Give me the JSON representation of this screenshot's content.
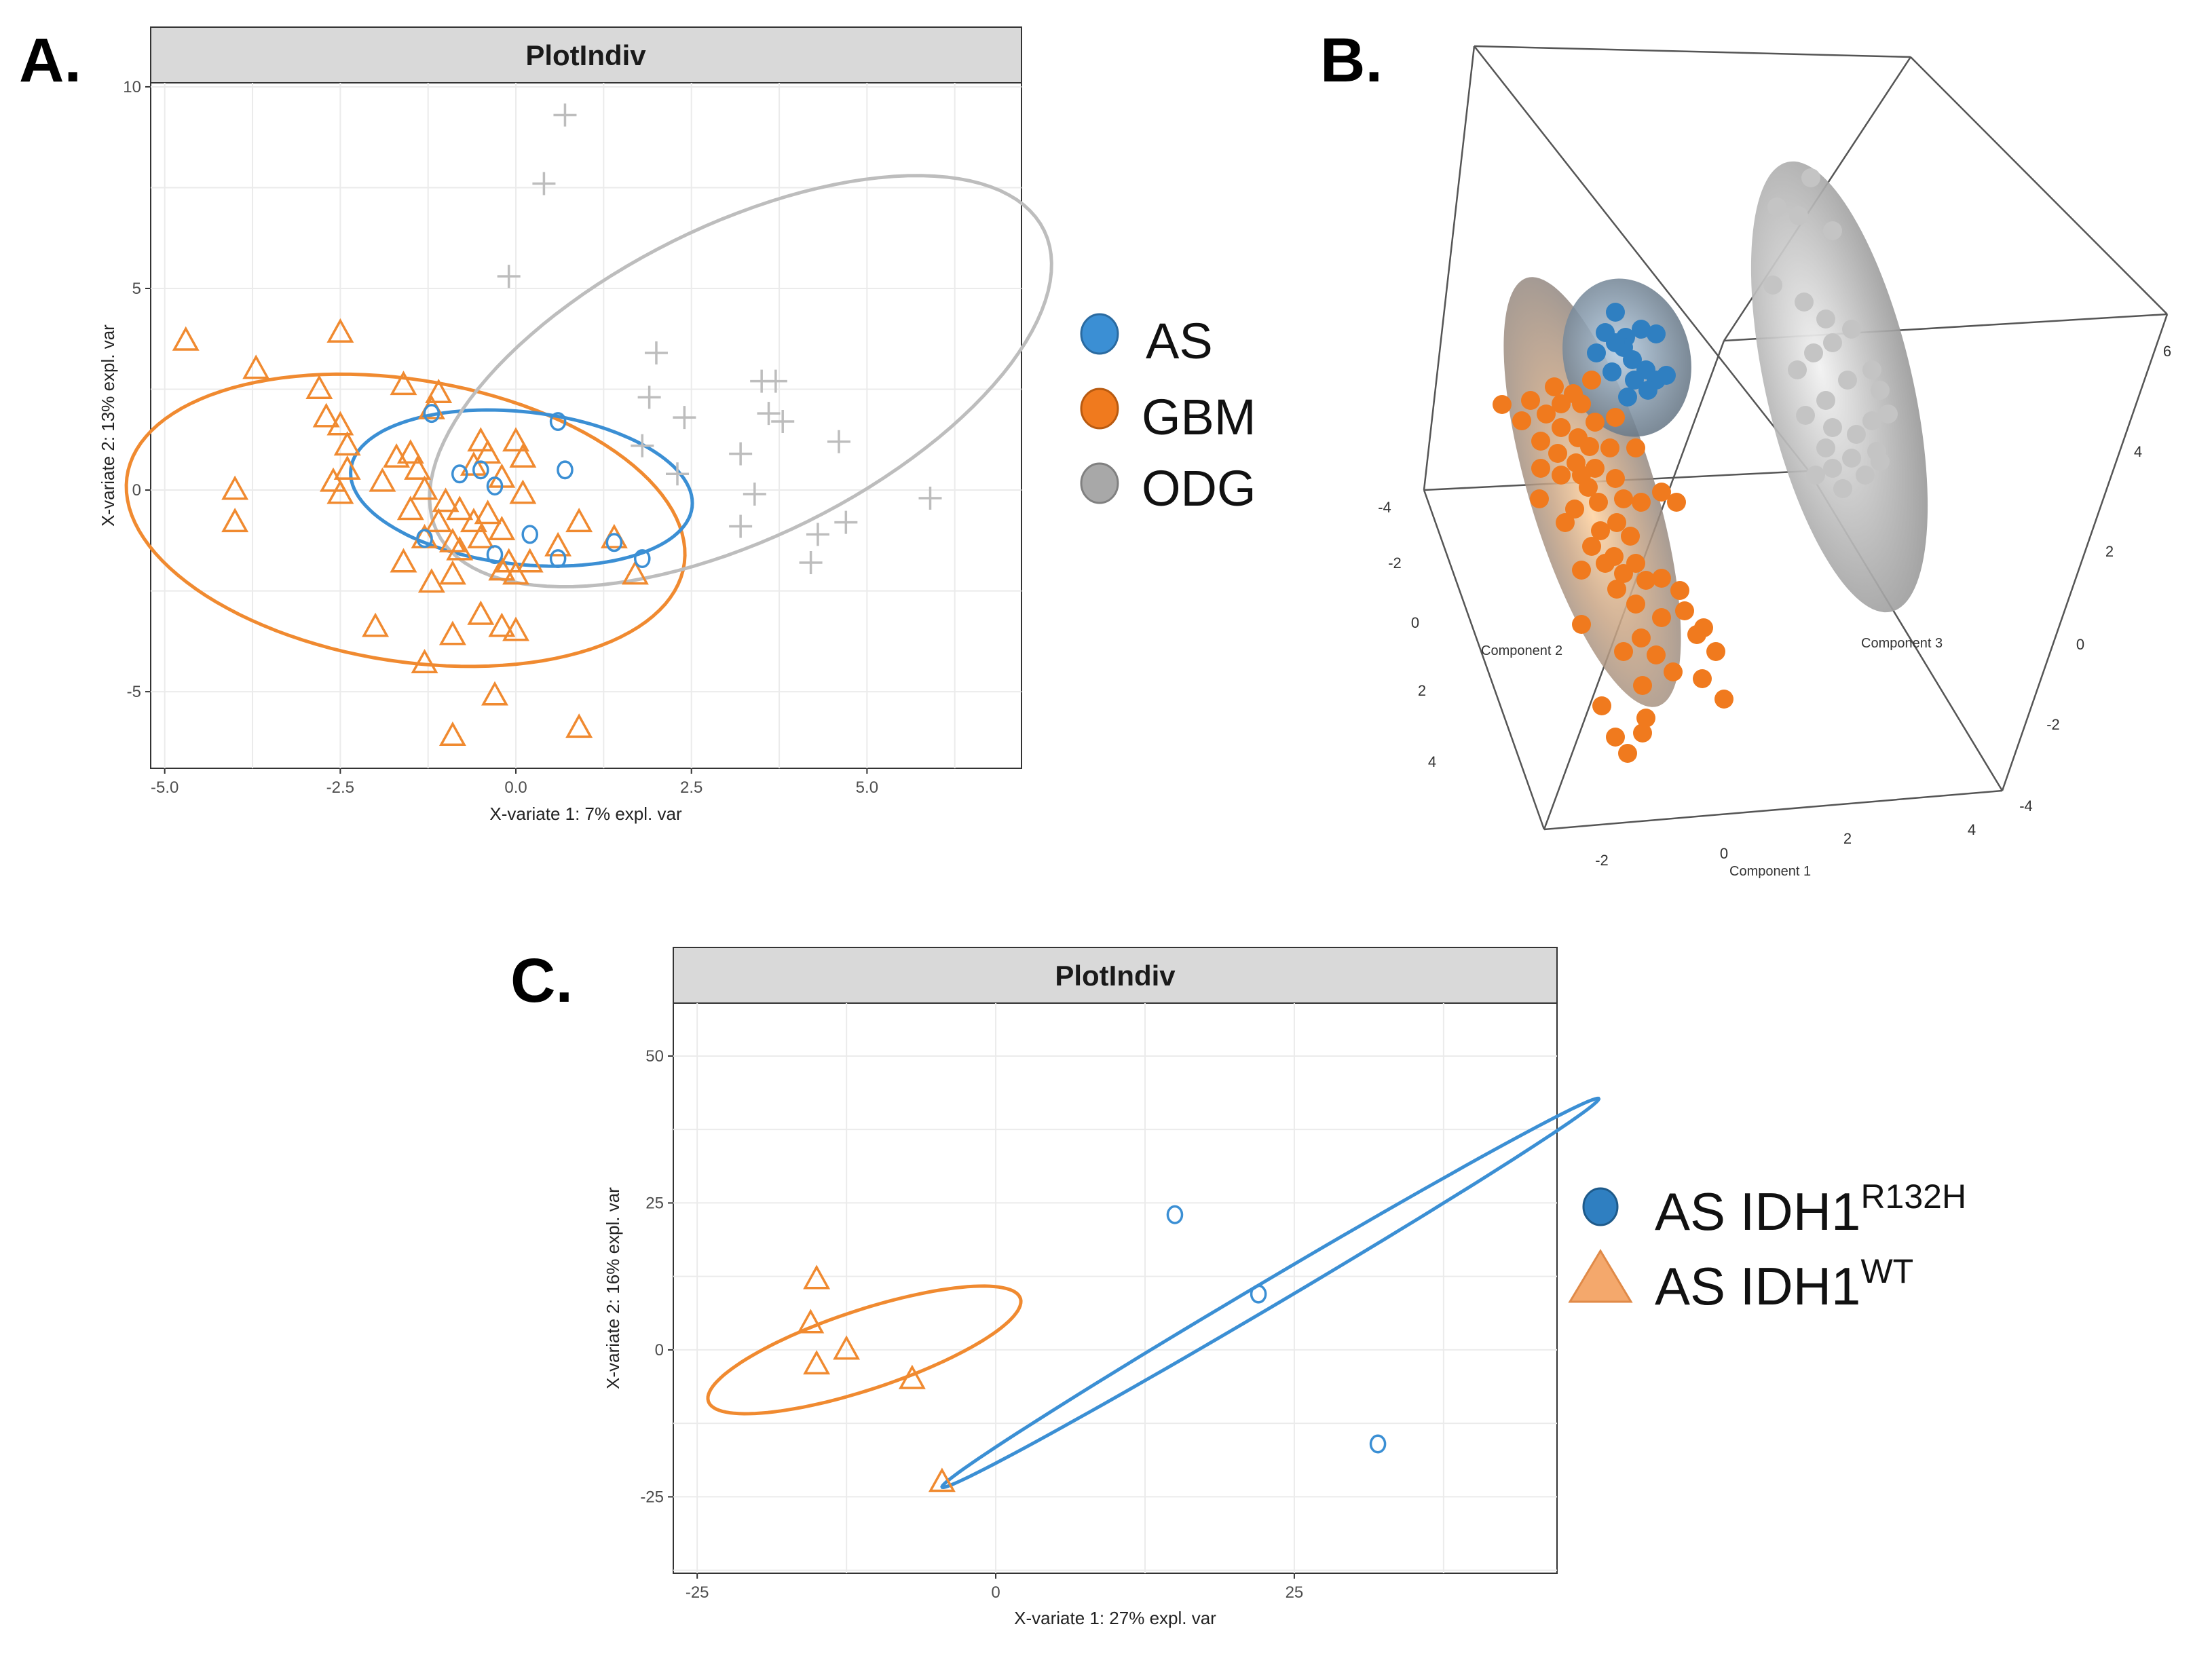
{
  "colors": {
    "AS": "#3b8fd4",
    "GBM": "#f08a30",
    "ODG": "#bdbdbd",
    "AS_solid": "#2f7fc1",
    "GBM_solid": "#f07a1e",
    "ODG_solid": "#c4c4c4",
    "grid": "#ebebeb",
    "strip_bg": "#d9d9d9"
  },
  "panel_letters": {
    "a": "A.",
    "b": "B.",
    "c": "C."
  },
  "chart_data": [
    {
      "id": "A",
      "type": "scatter",
      "title": "PlotIndiv",
      "xlabel": "X-variate 1: 7% expl. var",
      "ylabel": "X-variate 2: 13% expl. var",
      "xlim": [
        -5.2,
        7.2
      ],
      "ylim": [
        -6.9,
        10.1
      ],
      "xticks": [
        -5.0,
        -2.5,
        0.0,
        2.5,
        5.0
      ],
      "xtick_labels": [
        "-5.0",
        "-2.5",
        "0.0",
        "2.5",
        "5.0"
      ],
      "yticks": [
        -5,
        0,
        5,
        10
      ],
      "ytick_labels": [
        "-5",
        "0",
        "5",
        "10"
      ],
      "series": [
        {
          "name": "GBM",
          "marker": "triangle",
          "color_key": "GBM",
          "points": [
            [
              -4.7,
              3.7
            ],
            [
              -2.5,
              3.9
            ],
            [
              -3.7,
              3.0
            ],
            [
              -2.8,
              2.5
            ],
            [
              -2.7,
              1.8
            ],
            [
              -2.5,
              1.6
            ],
            [
              -2.4,
              1.1
            ],
            [
              -1.6,
              2.6
            ],
            [
              -1.2,
              2.0
            ],
            [
              -1.1,
              2.4
            ],
            [
              -1.5,
              0.9
            ],
            [
              -1.7,
              0.8
            ],
            [
              -1.4,
              0.5
            ],
            [
              -2.4,
              0.5
            ],
            [
              -2.6,
              0.2
            ],
            [
              -2.5,
              -0.1
            ],
            [
              -4.0,
              0.0
            ],
            [
              -4.0,
              -0.8
            ],
            [
              -1.3,
              0.0
            ],
            [
              -1.0,
              -0.3
            ],
            [
              -0.8,
              -0.5
            ],
            [
              -1.1,
              -0.8
            ],
            [
              -1.3,
              -1.2
            ],
            [
              -0.9,
              -1.3
            ],
            [
              -0.8,
              -1.5
            ],
            [
              -0.5,
              -1.2
            ],
            [
              -0.6,
              -0.8
            ],
            [
              -0.4,
              -0.6
            ],
            [
              -0.2,
              -1.0
            ],
            [
              -0.6,
              0.6
            ],
            [
              -0.4,
              0.9
            ],
            [
              -0.5,
              1.2
            ],
            [
              0.0,
              1.2
            ],
            [
              0.1,
              0.8
            ],
            [
              -0.2,
              0.3
            ],
            [
              0.1,
              -0.1
            ],
            [
              -0.1,
              -1.8
            ],
            [
              -0.2,
              -2.0
            ],
            [
              0.0,
              -2.1
            ],
            [
              0.2,
              -1.8
            ],
            [
              0.6,
              -1.4
            ],
            [
              0.9,
              -0.8
            ],
            [
              1.4,
              -1.2
            ],
            [
              -1.6,
              -1.8
            ],
            [
              -1.2,
              -2.3
            ],
            [
              -0.9,
              -2.1
            ],
            [
              -0.5,
              -3.1
            ],
            [
              -0.2,
              -3.4
            ],
            [
              0.0,
              -3.5
            ],
            [
              -2.0,
              -3.4
            ],
            [
              -1.3,
              -4.3
            ],
            [
              -0.9,
              -3.6
            ],
            [
              -0.3,
              -5.1
            ],
            [
              0.9,
              -5.9
            ],
            [
              -0.9,
              -6.1
            ],
            [
              1.7,
              -2.1
            ],
            [
              -1.5,
              -0.5
            ],
            [
              -1.9,
              0.2
            ]
          ]
        },
        {
          "name": "AS",
          "marker": "circle",
          "color_key": "AS",
          "points": [
            [
              -1.2,
              1.9
            ],
            [
              0.6,
              1.7
            ],
            [
              -0.8,
              0.4
            ],
            [
              -0.5,
              0.5
            ],
            [
              -0.3,
              0.1
            ],
            [
              0.7,
              0.5
            ],
            [
              0.2,
              -1.1
            ],
            [
              -1.3,
              -1.2
            ],
            [
              -0.3,
              -1.6
            ],
            [
              0.6,
              -1.7
            ],
            [
              1.4,
              -1.3
            ],
            [
              1.8,
              -1.7
            ]
          ]
        },
        {
          "name": "ODG",
          "marker": "plus",
          "color_key": "ODG",
          "points": [
            [
              0.7,
              9.3
            ],
            [
              0.4,
              7.6
            ],
            [
              -0.1,
              5.3
            ],
            [
              2.0,
              3.4
            ],
            [
              1.9,
              2.3
            ],
            [
              2.4,
              1.8
            ],
            [
              3.5,
              2.7
            ],
            [
              3.7,
              2.7
            ],
            [
              3.6,
              1.9
            ],
            [
              3.8,
              1.7
            ],
            [
              4.6,
              1.2
            ],
            [
              3.2,
              0.9
            ],
            [
              2.3,
              0.4
            ],
            [
              1.8,
              1.1
            ],
            [
              3.4,
              -0.1
            ],
            [
              5.9,
              -0.2
            ],
            [
              3.2,
              -0.9
            ],
            [
              4.3,
              -1.1
            ],
            [
              4.7,
              -0.8
            ],
            [
              4.2,
              -1.8
            ]
          ]
        }
      ],
      "ellipses": [
        {
          "name": "GBM",
          "cx": -1.57,
          "cy": -0.75,
          "rx": 4.25,
          "ry": 3.3,
          "angle": -34
        },
        {
          "name": "AS",
          "cx": 0.08,
          "cy": 0.05,
          "rx": 2.5,
          "ry": 1.85,
          "angle": -20
        },
        {
          "name": "ODG",
          "cx": 3.2,
          "cy": 2.7,
          "rx": 3.1,
          "ry": 6.0,
          "angle": -38
        }
      ]
    },
    {
      "id": "B",
      "type": "scatter",
      "subtype": "3d",
      "legend": [
        "AS",
        "GBM",
        "ODG"
      ],
      "xlabel": "Component 1",
      "ylabel": "Component 2",
      "zlabel": "Component 3",
      "x_ticks": [
        "-2",
        "0",
        "2",
        "4"
      ],
      "y_ticks": [
        "-4",
        "-2",
        "0",
        "2",
        "4"
      ],
      "z_ticks": [
        "-4",
        "-2",
        "0",
        "2",
        "4",
        "6"
      ]
    },
    {
      "id": "C",
      "type": "scatter",
      "title": "PlotIndiv",
      "xlabel": "X-variate 1: 27% expl. var",
      "ylabel": "X-variate 2: 16% expl. var",
      "xlim": [
        -27,
        47
      ],
      "ylim": [
        -38,
        59
      ],
      "xticks": [
        -25,
        0,
        25
      ],
      "xtick_labels": [
        "-25",
        "0",
        "25"
      ],
      "yticks": [
        -25,
        0,
        25,
        50
      ],
      "ytick_labels": [
        "-25",
        "0",
        "25",
        "50"
      ],
      "legend": [
        {
          "label": "AS IDH1",
          "sup": "R132H",
          "marker": "circle",
          "color_key": "AS_solid"
        },
        {
          "label": "AS IDH1",
          "sup": "WT",
          "marker": "triangle",
          "color_key": "GBM_solid"
        }
      ],
      "series": [
        {
          "name": "AS IDH1R132H",
          "marker": "circle",
          "color_key": "AS",
          "points": [
            [
              15.0,
              23.0
            ],
            [
              22.0,
              9.5
            ],
            [
              32.0,
              -16.0
            ]
          ]
        },
        {
          "name": "AS IDH1WT",
          "marker": "triangle",
          "color_key": "GBM",
          "points": [
            [
              -15.0,
              12.0
            ],
            [
              -15.5,
              4.5
            ],
            [
              -15.0,
              -2.5
            ],
            [
              -12.5,
              0.0
            ],
            [
              -7.0,
              -5.0
            ],
            [
              -4.5,
              -22.5
            ]
          ]
        }
      ],
      "ellipses": [
        {
          "name": "AS IDH1WT",
          "cx": -11.0,
          "cy": 0.0,
          "rx": 16.0,
          "ry": 5.8,
          "angle": 38
        },
        {
          "name": "AS IDH1R132H",
          "cx": 23.0,
          "cy": 9.7,
          "rx": 43.0,
          "ry": 1.6,
          "angle": 50.3
        }
      ]
    }
  ]
}
